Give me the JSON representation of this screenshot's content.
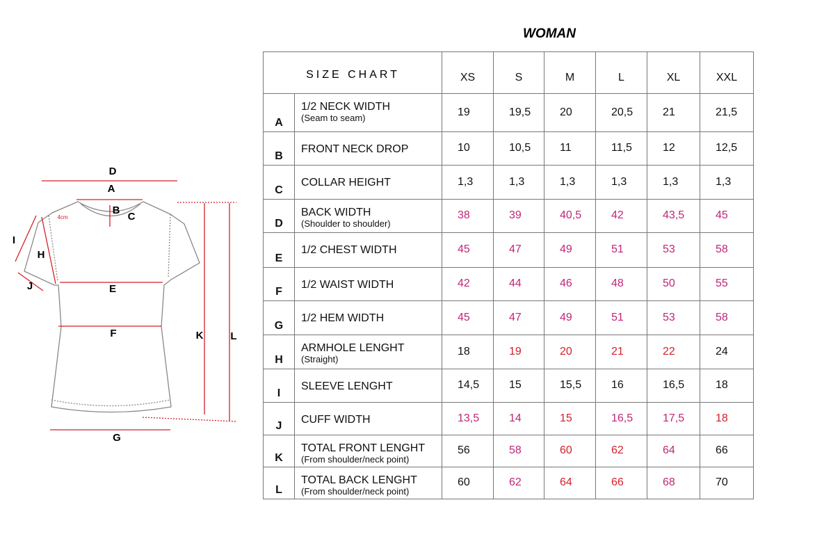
{
  "title": "WOMAN",
  "table": {
    "header": {
      "title": "SIZE CHART",
      "sizes": [
        "XS",
        "S",
        "M",
        "L",
        "XL",
        "XXL"
      ]
    },
    "rows": [
      {
        "code": "A",
        "name": "1/2 NECK WIDTH",
        "note": "(Seam to seam)",
        "values": [
          "19",
          "19,5",
          "20",
          "20,5",
          "21",
          "21,5"
        ]
      },
      {
        "code": "B",
        "name": "FRONT NECK DROP",
        "values": [
          "10",
          "10,5",
          "11",
          "11,5",
          "12",
          "12,5"
        ]
      },
      {
        "code": "C",
        "name": "COLLAR HEIGHT",
        "values": [
          "1,3",
          "1,3",
          "1,3",
          "1,3",
          "1,3",
          "1,3"
        ]
      },
      {
        "code": "D",
        "name": "BACK WIDTH",
        "note": "(Shoulder to shoulder)",
        "values": [
          "38",
          "39",
          "40,5",
          "42",
          "43,5",
          "45"
        ]
      },
      {
        "code": "E",
        "name": "1/2 CHEST WIDTH",
        "values": [
          "45",
          "47",
          "49",
          "51",
          "53",
          "58"
        ]
      },
      {
        "code": "F",
        "name": "1/2  WAIST WIDTH",
        "values": [
          "42",
          "44",
          "46",
          "48",
          "50",
          "55"
        ]
      },
      {
        "code": "G",
        "name": "1/2 HEM WIDTH",
        "values": [
          "45",
          "47",
          "49",
          "51",
          "53",
          "58"
        ]
      },
      {
        "code": "H",
        "name": "ARMHOLE LENGHT",
        "note": "(Straight)",
        "values": [
          "18",
          "19",
          "20",
          "21",
          "22",
          "24"
        ]
      },
      {
        "code": "I",
        "name": "SLEEVE LENGHT",
        "values": [
          "14,5",
          "15",
          "15,5",
          "16",
          "16,5",
          "18"
        ]
      },
      {
        "code": "J",
        "name": "CUFF WIDTH",
        "values": [
          "13,5",
          "14",
          "15",
          "16,5",
          "17,5",
          "18"
        ]
      },
      {
        "code": "K",
        "name": "TOTAL FRONT LENGHT",
        "note": "(From shoulder/neck point)",
        "values": [
          "56",
          "58",
          "60",
          "62",
          "64",
          "66"
        ]
      },
      {
        "code": "L",
        "name": "TOTAL BACK LENGHT",
        "note": "(From shoulder/neck point)",
        "values": [
          "60",
          "62",
          "64",
          "66",
          "68",
          "70"
        ]
      }
    ]
  },
  "diagram": {
    "labels": [
      "D",
      "A",
      "B",
      "C",
      "4cm",
      "I",
      "H",
      "J",
      "E",
      "F",
      "K",
      "L",
      "G"
    ]
  }
}
